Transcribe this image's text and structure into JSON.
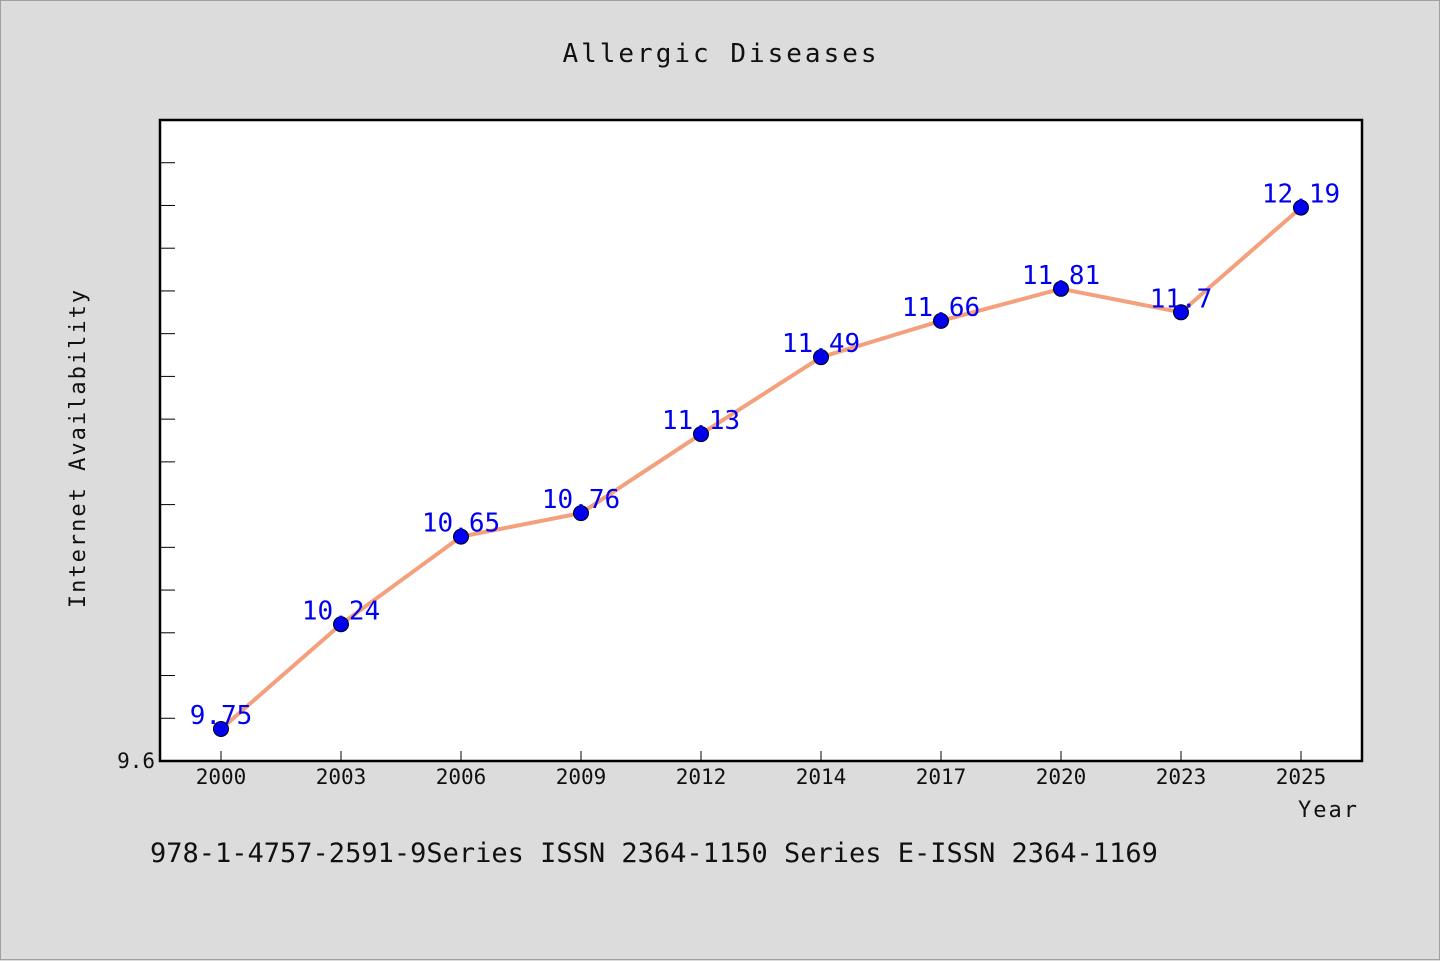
{
  "chart_data": {
    "type": "line",
    "title": "Allergic Diseases",
    "xlabel": "Year",
    "ylabel": "Internet Availability",
    "categories": [
      "2000",
      "2003",
      "2006",
      "2009",
      "2012",
      "2014",
      "2017",
      "2020",
      "2023",
      "2025"
    ],
    "series": [
      {
        "values": [
          9.75,
          10.24,
          10.65,
          10.76,
          11.13,
          11.49,
          11.66,
          11.81,
          11.7,
          12.19
        ],
        "labels": [
          "9.75",
          "10.24",
          "10.65",
          "10.76",
          "11.13",
          "11.49",
          "11.66",
          "11.81",
          "11.7",
          "12.19"
        ],
        "line_color": "#f4a07c",
        "marker_color": "#0000ee"
      }
    ],
    "ylim": [
      9.6,
      12.6
    ],
    "y_tick_labels": [
      "9.6"
    ],
    "grid": false,
    "legend": "none"
  },
  "footer_text": "978-1-4757-2591-9Series ISSN 2364-1150 Series E-ISSN 2364-1169"
}
